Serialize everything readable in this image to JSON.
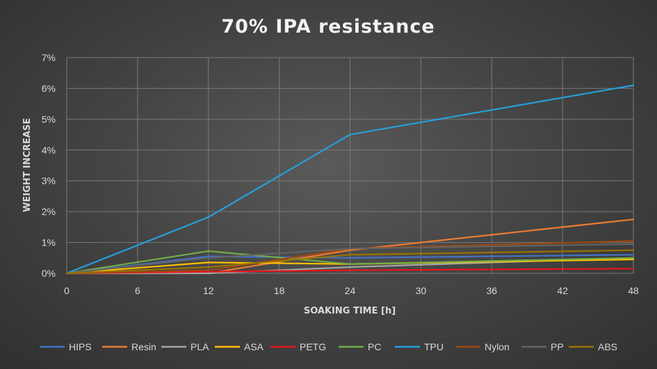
{
  "chart_data": {
    "type": "line",
    "title": "70% IPA resistance",
    "xlabel": "SOAKING TIME [h]",
    "ylabel": "WEIGHT INCREASE",
    "x": [
      0,
      12,
      24,
      48
    ],
    "xlim": [
      0,
      48
    ],
    "ylim": [
      0,
      7
    ],
    "x_ticks": [
      "0",
      "6",
      "12",
      "18",
      "24",
      "30",
      "36",
      "42",
      "48"
    ],
    "y_ticks": [
      "0%",
      "1%",
      "2%",
      "3%",
      "4%",
      "5%",
      "6%",
      "7%"
    ],
    "grid": true,
    "legend_position": "bottom",
    "series": [
      {
        "name": "HIPS",
        "color": "#4472c4",
        "values": [
          0,
          0.55,
          0.5,
          0.6
        ]
      },
      {
        "name": "Resin",
        "color": "#ed7d31",
        "values": [
          0,
          0.0,
          0.75,
          1.75
        ]
      },
      {
        "name": "PLA",
        "color": "#a5a5a5",
        "values": [
          0,
          0.0,
          0.2,
          0.5
        ]
      },
      {
        "name": "ASA",
        "color": "#ffc000",
        "values": [
          0,
          0.35,
          0.3,
          0.45
        ]
      },
      {
        "name": "PETG",
        "color": "#e8141c",
        "values": [
          0,
          0.05,
          0.1,
          0.15
        ]
      },
      {
        "name": "PC",
        "color": "#70ad47",
        "values": [
          0,
          0.72,
          0.3,
          0.5
        ]
      },
      {
        "name": "TPU",
        "color": "#26a0da",
        "values": [
          0,
          1.82,
          4.5,
          6.1
        ]
      },
      {
        "name": "Nylon",
        "color": "#9e480e",
        "values": [
          0,
          0.1,
          0.8,
          1.05
        ]
      },
      {
        "name": "PP",
        "color": "#636363",
        "values": [
          0,
          0.5,
          0.8,
          0.95
        ]
      },
      {
        "name": "ABS",
        "color": "#997300",
        "values": [
          0,
          0.2,
          0.6,
          0.75
        ]
      }
    ]
  }
}
